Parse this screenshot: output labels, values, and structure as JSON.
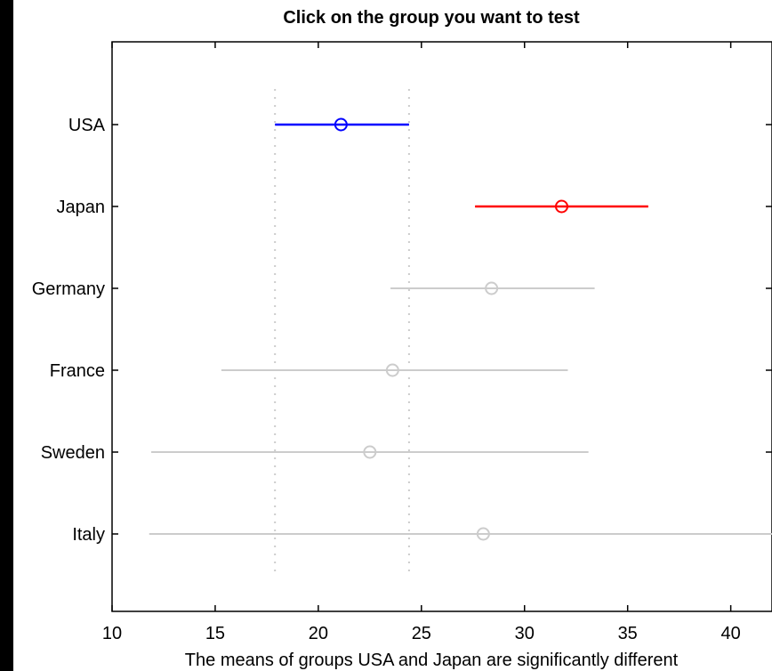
{
  "chart_data": {
    "type": "multcompare-interval",
    "title": "Click on the group you want to test",
    "xlabel": "The means of groups USA and Japan are significantly different",
    "ylabel": "",
    "xlim": [
      10,
      42
    ],
    "xticks": [
      10,
      15,
      20,
      25,
      30,
      35,
      40
    ],
    "grid": false,
    "groups": [
      {
        "name": "USA",
        "mean": 21.1,
        "lower": 17.9,
        "upper": 24.4,
        "color": "#0000ff",
        "state": "selected"
      },
      {
        "name": "Japan",
        "mean": 31.8,
        "lower": 27.6,
        "upper": 36.0,
        "color": "#ff0000",
        "state": "significantly-different"
      },
      {
        "name": "Germany",
        "mean": 28.4,
        "lower": 23.5,
        "upper": 33.4,
        "color": "#cccccc",
        "state": "not-significant"
      },
      {
        "name": "France",
        "mean": 23.6,
        "lower": 15.3,
        "upper": 32.1,
        "color": "#cccccc",
        "state": "not-significant"
      },
      {
        "name": "Sweden",
        "mean": 22.5,
        "lower": 11.9,
        "upper": 33.1,
        "color": "#cccccc",
        "state": "not-significant"
      },
      {
        "name": "Italy",
        "mean": 28.0,
        "lower": 11.8,
        "upper": 42.0,
        "color": "#cccccc",
        "state": "not-significant"
      }
    ],
    "reference_lines": [
      17.9,
      24.4
    ],
    "reference_line_color": "#cccccc"
  }
}
